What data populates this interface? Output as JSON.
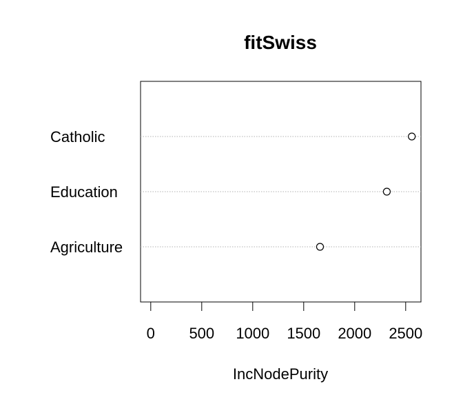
{
  "chart_data": {
    "type": "scatter",
    "title": "fitSwiss",
    "xlabel": "IncNodePurity",
    "ylabel": "",
    "xlim": [
      -100,
      2650
    ],
    "xticks": [
      "0",
      "500",
      "1000",
      "1500",
      "2000",
      "2500"
    ],
    "xtick_values": [
      0,
      500,
      1000,
      1500,
      2000,
      2500
    ],
    "categories": [
      "Catholic",
      "Education",
      "Agriculture"
    ],
    "values": [
      2560,
      2315,
      1660
    ],
    "grid": "dotted horizontal lines per category",
    "marker": "open-circle"
  }
}
